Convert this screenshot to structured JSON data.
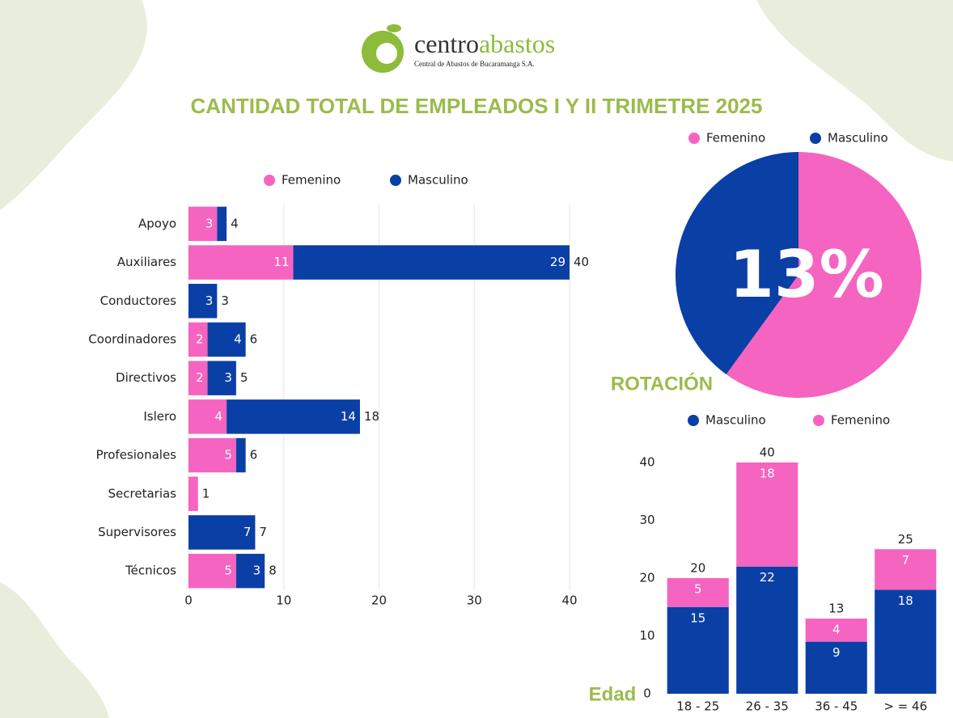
{
  "header": {
    "logo_part_1": "centro",
    "logo_part_2": "abastos",
    "tagline": "Central de Abastos de Bucaramanga S.A.",
    "title": "CANTIDAD TOTAL DE EMPLEADOS I Y II TRIMETRE 2025"
  },
  "chart_data": [
    {
      "type": "bar",
      "orientation": "horizontal",
      "stacked": true,
      "categories": [
        "Apoyo",
        "Auxiliares",
        "Conductores",
        "Coordinadores",
        "Directivos",
        "Islero",
        "Profesionales",
        "Secretarias",
        "Supervisores",
        "Técnicos"
      ],
      "series": [
        {
          "name": "Femenino",
          "color": "#f564c0",
          "values": [
            3,
            11,
            0,
            2,
            2,
            4,
            5,
            1,
            0,
            5
          ]
        },
        {
          "name": "Masculino",
          "color": "#0a3fa6",
          "values": [
            1,
            29,
            3,
            4,
            3,
            14,
            1,
            0,
            7,
            3
          ]
        }
      ],
      "totals": [
        4,
        40,
        3,
        6,
        5,
        18,
        6,
        1,
        7,
        8
      ],
      "xlim": [
        0,
        40
      ],
      "xticks": [
        0,
        10,
        20,
        30,
        40
      ],
      "grid": true
    },
    {
      "type": "pie",
      "title": "ROTACIÓN",
      "annotation": "13%",
      "categories": [
        "Femenino",
        "Masculino"
      ],
      "values": [
        60,
        40
      ],
      "colors": [
        "#f564c0",
        "#0a3fa6"
      ]
    },
    {
      "type": "bar",
      "orientation": "vertical",
      "stacked": true,
      "xlabel": "Edad",
      "categories": [
        "18 - 25",
        "26 - 35",
        "36 - 45",
        "> = 46"
      ],
      "series": [
        {
          "name": "Masculino",
          "color": "#0a3fa6",
          "values": [
            15,
            22,
            9,
            18
          ]
        },
        {
          "name": "Femenino",
          "color": "#f564c0",
          "values": [
            5,
            18,
            4,
            7
          ]
        }
      ],
      "totals": [
        20,
        40,
        13,
        25
      ],
      "ylim": [
        0,
        40
      ],
      "yticks": [
        0,
        10,
        20,
        30,
        40
      ],
      "grid": false
    }
  ]
}
